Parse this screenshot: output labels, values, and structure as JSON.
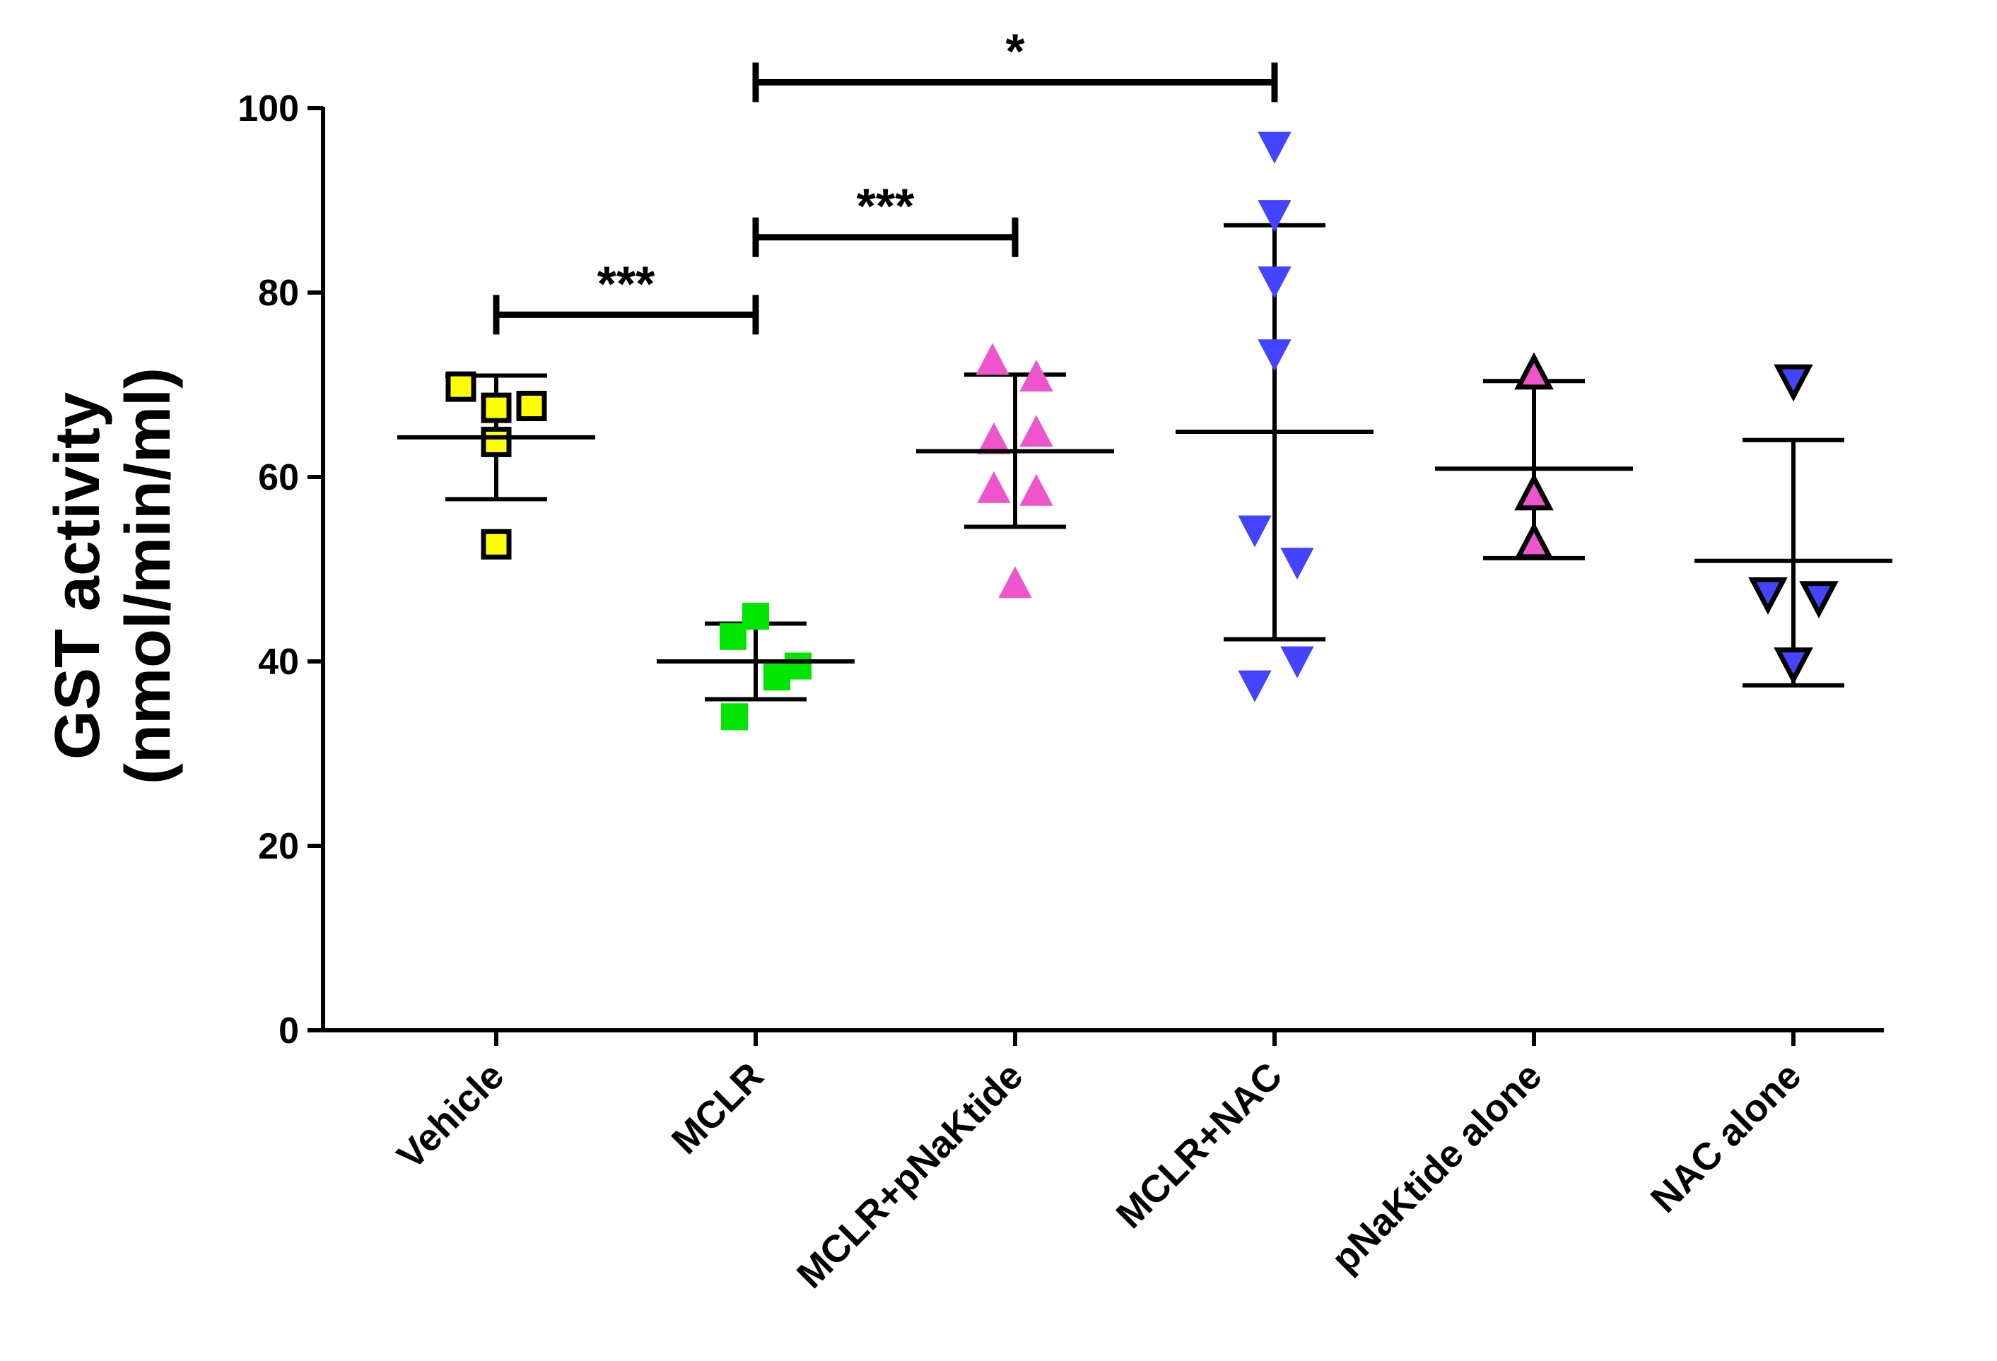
{
  "chart_data": {
    "type": "scatter",
    "ylabel_line1": "GST activity",
    "ylabel_line2": "(nmol/min/ml)",
    "ylim": [
      0,
      100
    ],
    "yticks": [
      0,
      20,
      40,
      60,
      80,
      100
    ],
    "categories": [
      "Vehicle",
      "MCLR",
      "MCLR+pNaKtide",
      "MCLR+NAC",
      "pNaKtide alone",
      "NAC alone"
    ],
    "groups": [
      {
        "name": "Vehicle",
        "marker": "square",
        "fill": "#ffff00",
        "stroke": "#000000",
        "points": [
          69.8,
          67.5,
          67.7,
          63.8,
          52.7
        ],
        "mean": 64.3,
        "sd_low": 57.6,
        "sd_high": 71.0
      },
      {
        "name": "MCLR",
        "marker": "square",
        "fill": "#00e600",
        "stroke": "#00e600",
        "points": [
          44.9,
          42.7,
          39.5,
          38.3,
          34.0
        ],
        "mean": 40.0,
        "sd_low": 35.9,
        "sd_high": 44.1
      },
      {
        "name": "MCLR+pNaKtide",
        "marker": "triangle-up",
        "fill": "#ee55cc",
        "stroke": "#ee55cc",
        "points": [
          72.6,
          70.8,
          64.8,
          64.0,
          58.7,
          58.4,
          48.4
        ],
        "mean": 62.8,
        "sd_low": 54.6,
        "sd_high": 71.1
      },
      {
        "name": "MCLR+NAC",
        "marker": "triangle-down",
        "fill": "#4444ff",
        "stroke": "#4444ff",
        "points": [
          95.9,
          88.5,
          81.3,
          73.4,
          54.3,
          50.8,
          40.1,
          37.5
        ],
        "mean": 64.9,
        "sd_low": 42.4,
        "sd_high": 87.3
      },
      {
        "name": "pNaKtide alone",
        "marker": "triangle-up",
        "fill": "#ee55cc",
        "stroke": "#000000",
        "points": [
          71.2,
          58.1,
          52.8
        ],
        "mean": 60.9,
        "sd_low": 51.2,
        "sd_high": 70.4
      },
      {
        "name": "NAC alone",
        "marker": "triangle-down",
        "fill": "#4444ff",
        "stroke": "#000000",
        "points": [
          70.5,
          47.4,
          47.0,
          39.8
        ],
        "mean": 50.9,
        "sd_low": 37.4,
        "sd_high": 64.0
      }
    ],
    "significance": [
      {
        "from": 0,
        "to": 1,
        "y": 77.6,
        "label": "***"
      },
      {
        "from": 1,
        "to": 2,
        "y": 86.0,
        "label": "***"
      },
      {
        "from": 1,
        "to": 3,
        "y": 102.8,
        "label": "*"
      }
    ]
  }
}
